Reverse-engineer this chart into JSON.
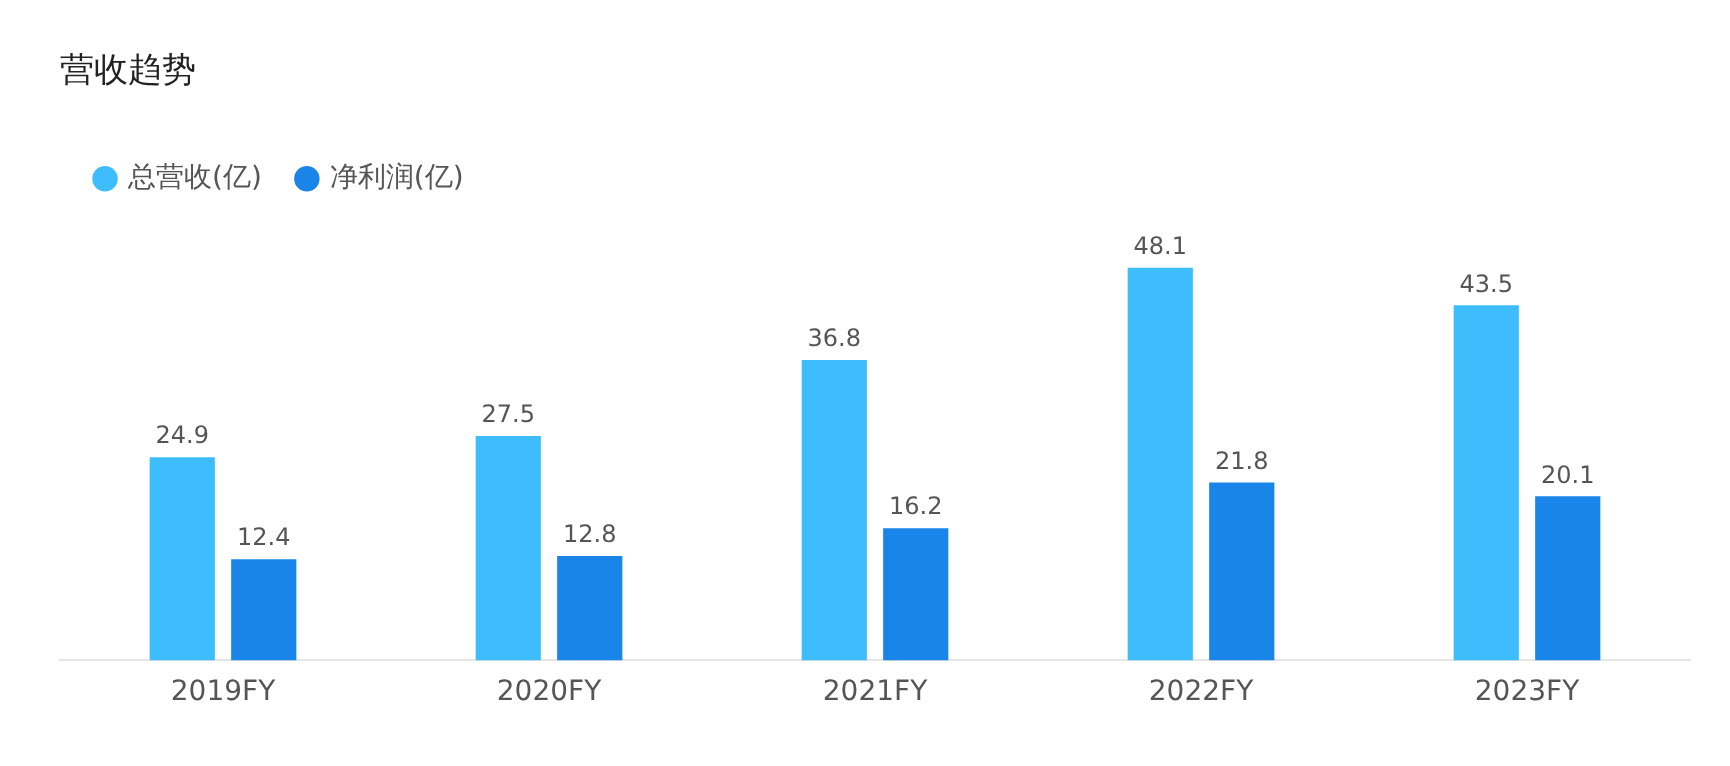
{
  "chart_data": {
    "type": "bar",
    "title": "营收趋势",
    "categories": [
      "2019FY",
      "2020FY",
      "2021FY",
      "2022FY",
      "2023FY"
    ],
    "series": [
      {
        "name": "总营收(亿)",
        "color": "#3dbdfb",
        "values": [
          24.9,
          27.5,
          36.8,
          48.1,
          43.5
        ]
      },
      {
        "name": "净利润(亿)",
        "color": "#1a85e8",
        "values": [
          12.4,
          12.8,
          16.2,
          21.8,
          20.1
        ]
      }
    ],
    "data_labels": true,
    "legend": "top left",
    "grid": false
  }
}
